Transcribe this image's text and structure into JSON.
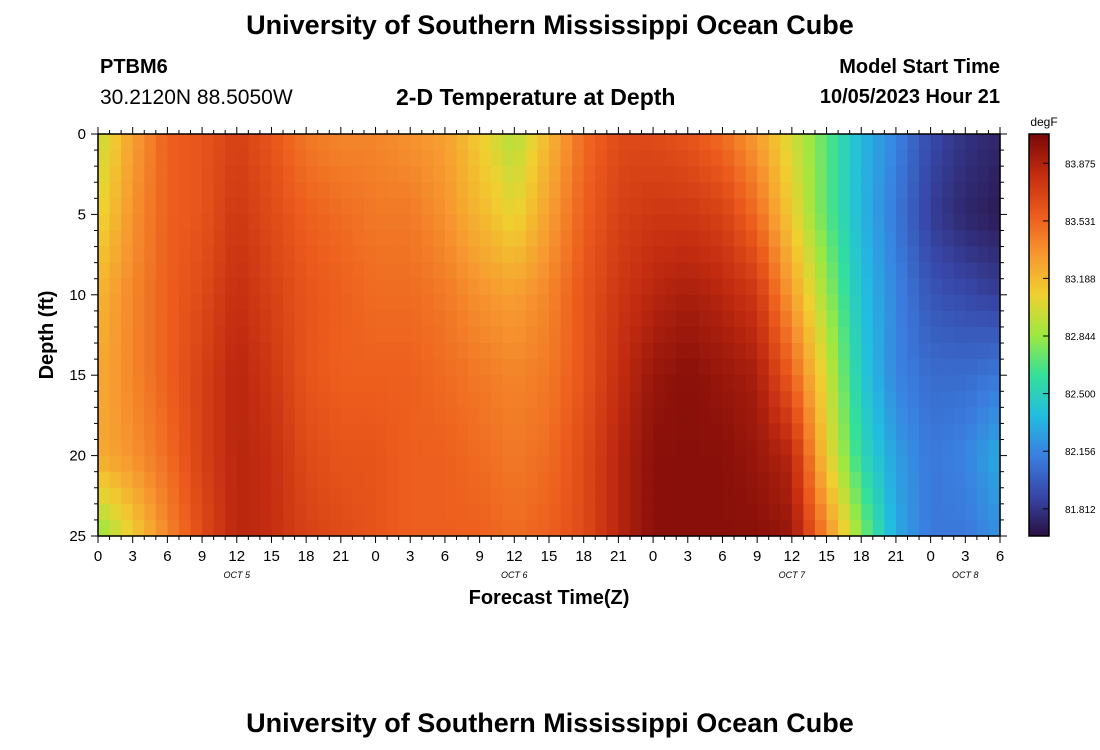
{
  "header": {
    "title": "University of Southern Mississippi Ocean Cube",
    "station_id": "PTBM6",
    "coords": "30.2120N  88.5050W",
    "plot_title": "2-D Temperature at Depth",
    "model_label": "Model Start Time",
    "model_start": "10/05/2023 Hour 21"
  },
  "footer": {
    "title": "University of Southern Mississippi Ocean Cube"
  },
  "chart_data": {
    "type": "heatmap",
    "title": "2-D Temperature at Depth",
    "xlabel": "Forecast Time(Z)",
    "ylabel": "Depth (ft)",
    "x_hours_range": [
      0,
      78
    ],
    "y_range": [
      0,
      25
    ],
    "x_ticks": [
      "0",
      "3",
      "6",
      "9",
      "12",
      "15",
      "18",
      "21",
      "0",
      "3",
      "6",
      "9",
      "12",
      "15",
      "18",
      "21",
      "0",
      "3",
      "6",
      "9",
      "12",
      "15",
      "18",
      "21",
      "0",
      "3",
      "6"
    ],
    "y_ticks": [
      "0",
      "5",
      "10",
      "15",
      "20",
      "25"
    ],
    "day_labels": [
      {
        "label": "OCT 5",
        "hour": 12
      },
      {
        "label": "OCT 6",
        "hour": 36
      },
      {
        "label": "OCT 7",
        "hour": 60
      },
      {
        "label": "OCT 8",
        "hour": 75
      }
    ],
    "colorbar": {
      "unit": "degF",
      "range": [
        81.65,
        84.05
      ],
      "ticks": [
        "83.875",
        "83.531",
        "83.188",
        "82.844",
        "82.500",
        "82.156",
        "81.812"
      ],
      "colors": [
        "#2a0f40",
        "#3747a8",
        "#3a7fe0",
        "#22bde0",
        "#34e09a",
        "#9ee840",
        "#f0d030",
        "#f79830",
        "#ec5a1c",
        "#c32c10",
        "#7a0808"
      ]
    },
    "depth_rows_ft": [
      0,
      5,
      10,
      15,
      20,
      25
    ],
    "time_cols_hours": [
      0,
      3,
      6,
      9,
      12,
      15,
      18,
      21,
      24,
      27,
      30,
      33,
      36,
      39,
      42,
      45,
      48,
      51,
      54,
      57,
      60,
      63,
      66,
      69,
      72,
      75,
      78
    ],
    "values_degF": [
      [
        82.95,
        83.3,
        83.55,
        83.6,
        83.7,
        83.6,
        83.45,
        83.4,
        83.4,
        83.35,
        83.3,
        83.1,
        82.9,
        83.2,
        83.5,
        83.65,
        83.65,
        83.6,
        83.5,
        83.3,
        83.0,
        82.7,
        82.35,
        82.15,
        81.9,
        81.8,
        81.75
      ],
      [
        83.05,
        83.35,
        83.55,
        83.6,
        83.75,
        83.65,
        83.55,
        83.5,
        83.45,
        83.45,
        83.35,
        83.2,
        83.05,
        83.3,
        83.55,
        83.7,
        83.75,
        83.75,
        83.7,
        83.5,
        83.1,
        82.7,
        82.35,
        82.1,
        81.85,
        81.75,
        81.7
      ],
      [
        83.2,
        83.4,
        83.55,
        83.65,
        83.8,
        83.7,
        83.6,
        83.55,
        83.5,
        83.5,
        83.45,
        83.35,
        83.3,
        83.4,
        83.6,
        83.75,
        83.85,
        83.9,
        83.85,
        83.75,
        83.3,
        82.85,
        82.4,
        82.15,
        81.95,
        81.9,
        81.85
      ],
      [
        83.25,
        83.4,
        83.55,
        83.7,
        83.85,
        83.75,
        83.6,
        83.55,
        83.55,
        83.55,
        83.5,
        83.45,
        83.4,
        83.45,
        83.6,
        83.8,
        83.95,
        84.0,
        83.95,
        83.9,
        83.55,
        83.0,
        82.45,
        82.15,
        82.05,
        82.05,
        82.1
      ],
      [
        83.25,
        83.35,
        83.5,
        83.7,
        83.85,
        83.8,
        83.65,
        83.6,
        83.6,
        83.55,
        83.55,
        83.5,
        83.45,
        83.5,
        83.65,
        83.85,
        84.0,
        84.0,
        84.0,
        83.95,
        83.85,
        83.1,
        82.55,
        82.25,
        82.1,
        82.15,
        82.3
      ],
      [
        82.8,
        83.1,
        83.4,
        83.65,
        83.85,
        83.8,
        83.7,
        83.65,
        83.6,
        83.55,
        83.55,
        83.55,
        83.5,
        83.55,
        83.65,
        83.85,
        84.0,
        84.0,
        84.0,
        84.0,
        83.95,
        83.4,
        82.8,
        82.3,
        82.1,
        82.1,
        82.2
      ]
    ]
  }
}
